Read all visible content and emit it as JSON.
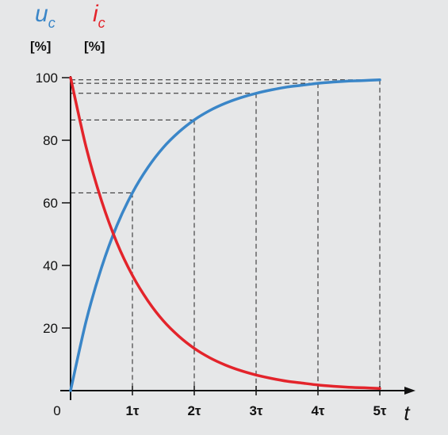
{
  "chart_data": {
    "type": "line",
    "x_axis": {
      "label": "t",
      "range": [
        0,
        5.55
      ],
      "origin_label": "0",
      "ticks": [
        {
          "value": 1,
          "label": "1τ"
        },
        {
          "value": 2,
          "label": "2τ"
        },
        {
          "value": 3,
          "label": "3τ"
        },
        {
          "value": 4,
          "label": "4τ"
        },
        {
          "value": 5,
          "label": "5τ"
        }
      ]
    },
    "y_axis": {
      "range": [
        0,
        108
      ],
      "ticks": [
        20,
        40,
        60,
        80,
        100
      ],
      "tick_labels": [
        "20",
        "40",
        "60",
        "80",
        "100"
      ]
    },
    "series": [
      {
        "name": "u",
        "subscript": "c",
        "unit": "[%]",
        "color": "#3a86c8",
        "x": [
          0,
          0.25,
          0.5,
          0.75,
          1,
          1.25,
          1.5,
          1.75,
          2,
          2.25,
          2.5,
          2.75,
          3,
          3.25,
          3.5,
          3.75,
          4,
          4.25,
          4.5,
          4.75,
          5
        ],
        "y": [
          0,
          22.1,
          39.3,
          52.8,
          63.2,
          71.3,
          77.7,
          82.6,
          86.5,
          89.5,
          91.8,
          93.6,
          95.0,
          96.1,
          97.0,
          97.6,
          98.2,
          98.6,
          98.9,
          99.1,
          99.3
        ]
      },
      {
        "name": "i",
        "subscript": "c",
        "unit": "[%]",
        "color": "#e3242b",
        "x": [
          0,
          0.25,
          0.5,
          0.75,
          1,
          1.25,
          1.5,
          1.75,
          2,
          2.25,
          2.5,
          2.75,
          3,
          3.25,
          3.5,
          3.75,
          4,
          4.25,
          4.5,
          4.75,
          5
        ],
        "y": [
          100,
          77.9,
          60.7,
          47.2,
          36.8,
          28.7,
          22.3,
          17.4,
          13.5,
          10.5,
          8.2,
          6.4,
          5.0,
          3.9,
          3.0,
          2.4,
          1.8,
          1.4,
          1.1,
          0.9,
          0.7
        ]
      }
    ],
    "reference_lines": [
      {
        "x": 1,
        "y": 63.2
      },
      {
        "x": 2,
        "y": 86.5
      },
      {
        "x": 3,
        "y": 95.0
      },
      {
        "x": 4,
        "y": 98.2
      },
      {
        "x": 5,
        "y": 99.3
      }
    ],
    "grid": false
  }
}
